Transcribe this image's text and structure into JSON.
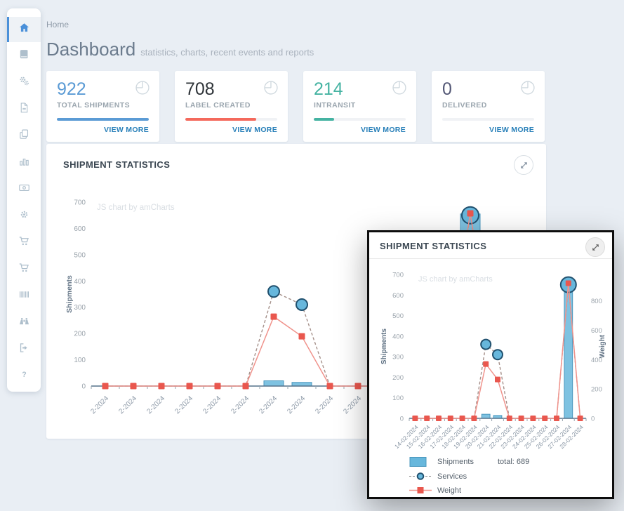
{
  "breadcrumb": "Home",
  "page": {
    "title": "Dashboard",
    "subtitle": "statistics, charts, recent events and reports"
  },
  "sidebar": {
    "items": [
      {
        "icon": "home",
        "active": true
      },
      {
        "icon": "book",
        "active": false
      },
      {
        "icon": "cogs",
        "active": false
      },
      {
        "icon": "pdf-file",
        "active": false
      },
      {
        "icon": "copy",
        "active": false
      },
      {
        "icon": "bar-chart",
        "active": false
      },
      {
        "icon": "money",
        "active": false
      },
      {
        "icon": "settings",
        "active": false
      },
      {
        "icon": "cart",
        "active": false
      },
      {
        "icon": "cart-alt",
        "active": false
      },
      {
        "icon": "barcode",
        "active": false
      },
      {
        "icon": "binoculars",
        "active": false
      },
      {
        "icon": "sign-out",
        "active": false
      },
      {
        "icon": "help",
        "active": false
      }
    ]
  },
  "stat_cards": [
    {
      "value": "922",
      "label": "TOTAL SHIPMENTS",
      "view_more": "VIEW MORE",
      "value_color": "#5b9bd5",
      "bar_color": "#5b9bd5",
      "progress_pct": 100
    },
    {
      "value": "708",
      "label": "LABEL CREATED",
      "view_more": "VIEW MORE",
      "value_color": "#2f3439",
      "bar_color": "#f4695c",
      "progress_pct": 77
    },
    {
      "value": "214",
      "label": "INTRANSIT",
      "view_more": "VIEW MORE",
      "value_color": "#45b3a2",
      "bar_color": "#45b3a2",
      "progress_pct": 22
    },
    {
      "value": "0",
      "label": "DELIVERED",
      "view_more": "VIEW MORE",
      "value_color": "#545876",
      "bar_color": "#e8ecef",
      "progress_pct": 0
    }
  ],
  "panel": {
    "title": "SHIPMENT STATISTICS"
  },
  "popup": {
    "title": "SHIPMENT STATISTICS"
  },
  "chart_data": {
    "type": "bar",
    "title": "SHIPMENT STATISTICS",
    "categories": [
      "14-02-2024",
      "15-02-2024",
      "16-02-2024",
      "17-02-2024",
      "18-02-2024",
      "19-02-2024",
      "20-02-2024",
      "21-02-2024",
      "22-02-2024",
      "23-02-2024",
      "24-02-2024",
      "25-02-2024",
      "26-02-2024",
      "27-02-2024",
      "28-02-2024"
    ],
    "series": [
      {
        "name": "Shipments",
        "type": "column",
        "axis": "left",
        "color": "#67b7dc",
        "stroke": "#4a97be",
        "values": [
          0,
          0,
          0,
          0,
          0,
          0,
          20,
          14,
          0,
          0,
          0,
          0,
          0,
          655,
          0
        ]
      },
      {
        "name": "Services",
        "type": "dashed-line-circles",
        "axis": "left",
        "line_color": "#a5908a",
        "bullet_fill": "#67b7dc",
        "bullet_stroke": "#20506e",
        "values": [
          0,
          0,
          0,
          0,
          0,
          0,
          360,
          310,
          0,
          0,
          0,
          0,
          0,
          650,
          0
        ]
      },
      {
        "name": "Weight",
        "type": "line-squares",
        "axis": "right",
        "line_color": "#f0938c",
        "bullet_fill": "#e9574e",
        "values": [
          0,
          0,
          0,
          0,
          0,
          0,
          370,
          265,
          0,
          0,
          0,
          0,
          0,
          920,
          0
        ]
      }
    ],
    "left_axis": {
      "title": "Shipments",
      "min": 0,
      "max": 700,
      "tick_step": 100
    },
    "right_axis": {
      "title": "Weight",
      "min": 0,
      "max": 980,
      "ticks": [
        0,
        200,
        400,
        600,
        800
      ]
    },
    "x_axis": {
      "background_display_label": "2-2024"
    },
    "watermark": "JS chart by amCharts",
    "legend": [
      {
        "label": "Shipments",
        "extra": "total: 689"
      },
      {
        "label": "Services",
        "extra": ""
      },
      {
        "label": "Weight",
        "extra": ""
      }
    ],
    "ylim_left": [
      0,
      700
    ],
    "ylim_right": [
      0,
      980
    ],
    "grid": false,
    "legend_position": "bottom"
  }
}
